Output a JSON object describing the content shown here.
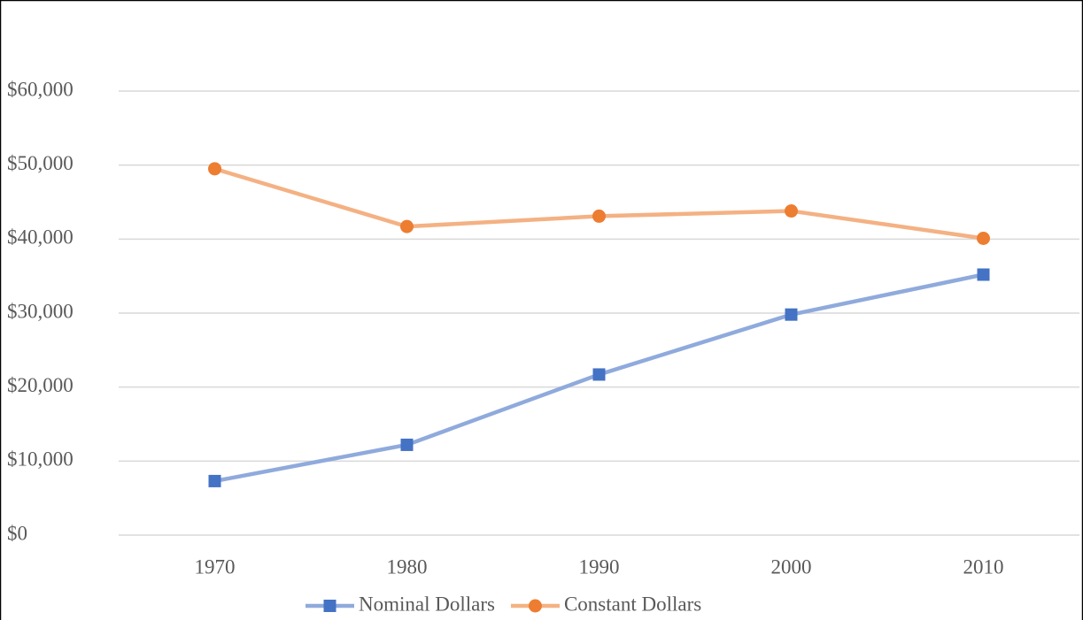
{
  "chart_data": {
    "type": "line",
    "categories": [
      "1970",
      "1980",
      "1990",
      "2000",
      "2010"
    ],
    "series": [
      {
        "name": "Nominal Dollars",
        "color": "#8faadc",
        "marker_color": "#4472c4",
        "marker": "square",
        "values": [
          7300,
          12200,
          21700,
          29800,
          35200
        ]
      },
      {
        "name": "Constant Dollars",
        "color": "#f4b183",
        "marker_color": "#ed7d31",
        "marker": "circle",
        "values": [
          49500,
          41700,
          43100,
          43800,
          40100
        ]
      }
    ],
    "ylim": [
      0,
      60000
    ],
    "yticks": [
      {
        "value": 0,
        "label": "$0"
      },
      {
        "value": 10000,
        "label": "$10,000"
      },
      {
        "value": 20000,
        "label": "$20,000"
      },
      {
        "value": 30000,
        "label": "$30,000"
      },
      {
        "value": 40000,
        "label": "$40,000"
      },
      {
        "value": 50000,
        "label": "$50,000"
      },
      {
        "value": 60000,
        "label": "$60,000"
      }
    ],
    "grid": true,
    "legend": "bottom"
  }
}
